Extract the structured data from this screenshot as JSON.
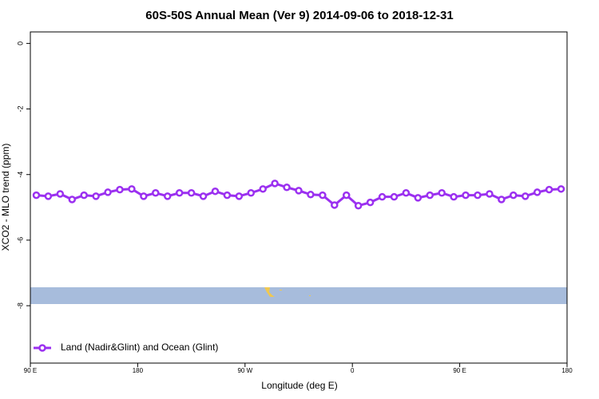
{
  "chart_data": {
    "type": "line",
    "title": "60S-50S Annual Mean (Ver 9)   2014-09-06 to 2018-12-31",
    "x_label": "Longitude (deg E)",
    "y_label": "XCO2 - MLO trend (ppm)",
    "x": [
      95,
      105,
      115,
      125,
      135,
      145,
      155,
      165,
      175,
      185,
      195,
      205,
      215,
      225,
      235,
      245,
      255,
      265,
      275,
      285,
      295,
      305,
      315,
      325,
      335,
      345,
      355,
      365,
      375,
      385,
      395,
      405,
      415,
      425,
      435,
      445,
      455,
      465,
      475,
      485,
      495,
      505,
      515,
      525,
      535
    ],
    "series": [
      {
        "name": "Land (Nadir&Glint) and Ocean (Glint)",
        "color": "#9b30f0",
        "values": [
          -4.63,
          -4.66,
          -4.59,
          -4.76,
          -4.63,
          -4.66,
          -4.54,
          -4.46,
          -4.44,
          -4.66,
          -4.56,
          -4.66,
          -4.56,
          -4.56,
          -4.66,
          -4.51,
          -4.63,
          -4.66,
          -4.56,
          -4.44,
          -4.27,
          -4.39,
          -4.49,
          -4.61,
          -4.63,
          -4.93,
          -4.63,
          -4.95,
          -4.85,
          -4.68,
          -4.68,
          -4.56,
          -4.71,
          -4.63,
          -4.56,
          -4.68,
          -4.63,
          -4.63,
          -4.59,
          -4.76,
          -4.63,
          -4.66,
          -4.54,
          -4.46,
          -4.44
        ]
      }
    ],
    "xlim": [
      90,
      540
    ],
    "xticks": [
      {
        "value": 90,
        "label": "90 E"
      },
      180,
      {
        "value": 270,
        "label": "90 W"
      },
      {
        "value": 360,
        "label": "0"
      },
      {
        "value": 450,
        "label": "90 E"
      },
      {
        "value": 540,
        "label": "180"
      }
    ],
    "ylim": [
      -9.75,
      0.35
    ],
    "yticks": [
      0,
      -2,
      -4,
      -6,
      -8
    ],
    "legend": "bottom-left"
  }
}
